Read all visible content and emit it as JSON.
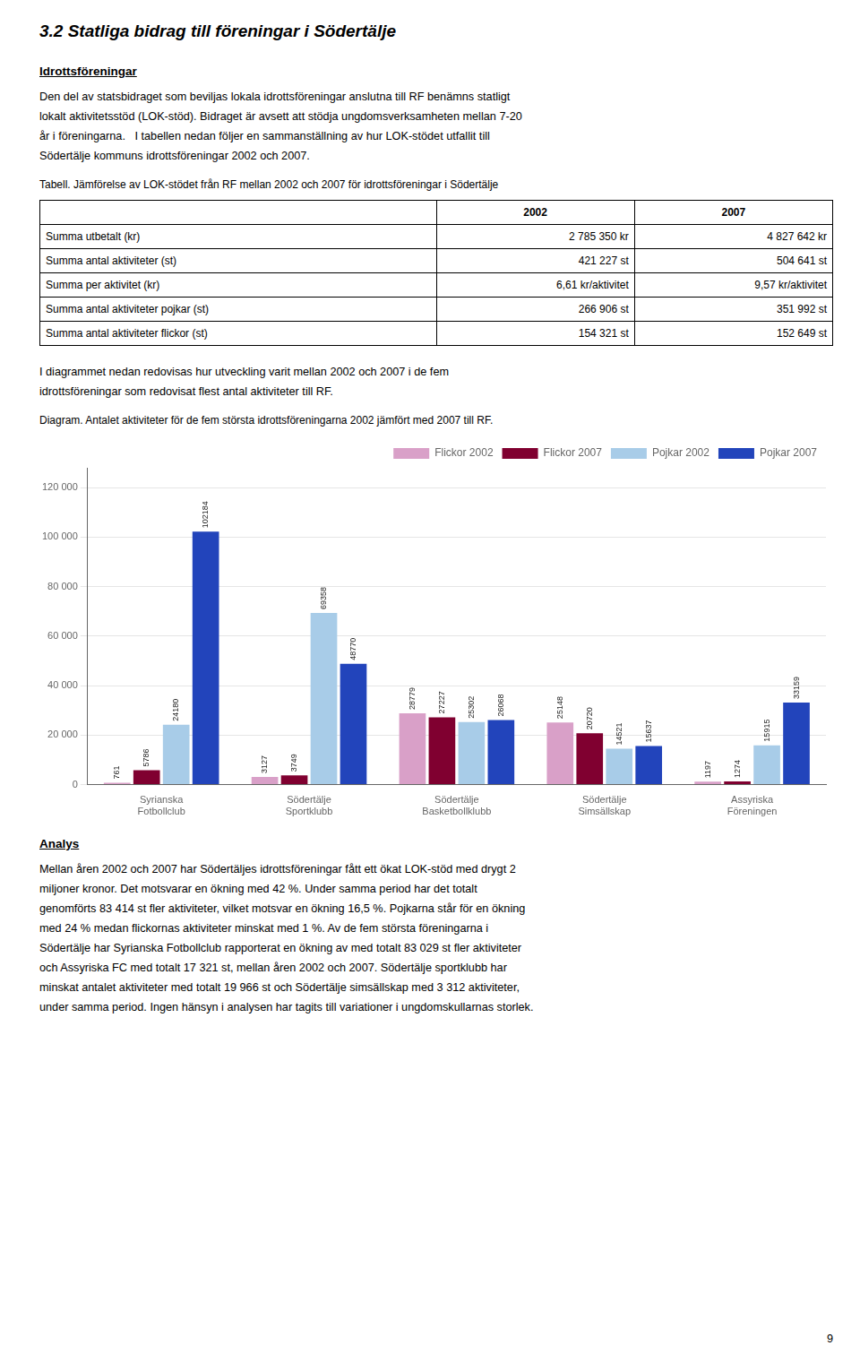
{
  "page": {
    "title": "3.2 Statliga bidrag till föreningar i Södertälje",
    "section_header": "Idrottsföreningar",
    "body_lines": [
      "Den del av statsbidraget som beviljas lokala idrottsföreningar anslutna till RF benämns statligt",
      "lokalt aktivitetsstöd (LOK-stöd). Bidraget är avsett att stödja ungdomsverksamheten mellan 7-20",
      "år i föreningarna.   I tabellen nedan följer en sammanställning av hur LOK-stödet utfallit till",
      "Södertälje kommuns idrottsföreningar 2002 och 2007."
    ],
    "table_caption": "Tabell. Jämförelse av LOK-stödet från RF mellan 2002 och 2007 för idrottsföreningar i Södertälje",
    "table_headers": [
      "",
      "2002",
      "2007"
    ],
    "table_rows": [
      [
        "Summa utbetalt (kr)",
        "2 785 350 kr",
        "4 827 642 kr"
      ],
      [
        "Summa antal aktiviteter (st)",
        "421 227 st",
        "504 641 st"
      ],
      [
        "Summa per aktivitet (kr)",
        "6,61 kr/aktivitet",
        "9,57 kr/aktivitet"
      ],
      [
        "Summa antal aktiviteter pojkar (st)",
        "266 906 st",
        "351 992 st"
      ],
      [
        "Summa antal aktiviteter flickor (st)",
        "154 321 st",
        "152 649 st"
      ]
    ],
    "middle_lines": [
      "I diagrammet nedan redovisas hur utveckling varit mellan 2002 och 2007 i de fem",
      "idrottsföreningar som redovisat flest antal aktiviteter till RF."
    ],
    "analysis_header": "Analys",
    "analysis_lines": [
      "Mellan åren 2002 och 2007 har Södertäljes idrottsföreningar fått ett ökat LOK-stöd med drygt 2",
      "miljoner kronor. Det motsvarar en ökning med 42 %. Under samma period har det totalt",
      "genomförts 83 414 st fler aktiviteter, vilket motsvar en ökning 16,5 %. Pojkarna står för en ökning",
      "med 24 % medan flickornas aktiviteter minskat med 1 %. Av de fem största föreningarna i",
      "Södertälje har Syrianska Fotbollclub rapporterat en ökning av med totalt 83 029 st fler aktiviteter",
      "och Assyriska FC med totalt 17 321 st, mellan åren 2002 och 2007. Södertälje sportklubb har",
      "minskat antalet aktiviteter med totalt 19 966 st och Södertälje simsällskap med 3 312 aktiviteter,",
      "under samma period. Ingen hänsyn i analysen har tagits till variationer i ungdomskullarnas storlek."
    ],
    "page_number": "9"
  },
  "chart_data": {
    "type": "bar",
    "title": "Diagram. Antalet aktiviteter för de fem största idrottsföreningarna 2002 jämfört med 2007 till RF.",
    "categories": [
      "Syrianska\nFotbollclub",
      "Södertälje\nSportklubb",
      "Södertälje\nBasketbollklubb",
      "Södertälje\nSimsällskap",
      "Assyriska\nFöreningen"
    ],
    "series": [
      {
        "name": "Flickor 2002",
        "color": "#D9A0C8",
        "values": [
          761,
          3127,
          28779,
          25148,
          1197
        ]
      },
      {
        "name": "Flickor 2007",
        "color": "#800030",
        "values": [
          5786,
          3749,
          27227,
          20720,
          1274
        ]
      },
      {
        "name": "Pojkar 2002",
        "color": "#A8CCE8",
        "values": [
          24180,
          69358,
          25302,
          14521,
          15915
        ]
      },
      {
        "name": "Pojkar 2007",
        "color": "#2244BB",
        "values": [
          102184,
          48770,
          26068,
          15637,
          33159
        ]
      }
    ],
    "ylim": [
      0,
      128000
    ],
    "yticks": [
      0,
      {
        "value": 20000,
        "label": "20 000"
      },
      {
        "value": 40000,
        "label": "40 000"
      },
      {
        "value": 60000,
        "label": "60 000"
      },
      {
        "value": 80000,
        "label": "80 000"
      },
      {
        "value": 100000,
        "label": "100 000"
      },
      {
        "value": 120000,
        "label": "120 000"
      }
    ],
    "grid": true,
    "legend": "upper right",
    "data_labels": true
  }
}
